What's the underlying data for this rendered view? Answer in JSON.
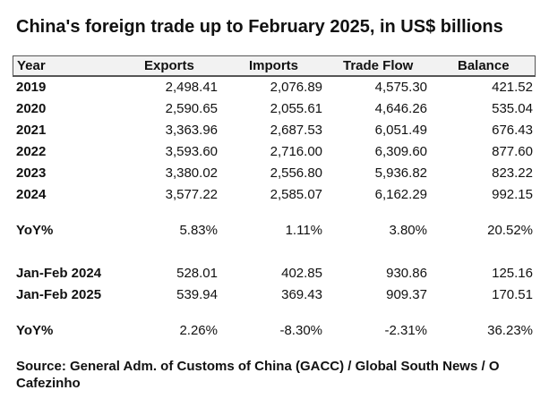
{
  "title": "China's foreign trade up to February 2025, in US$ billions",
  "columns": {
    "year": "Year",
    "exports": "Exports",
    "imports": "Imports",
    "trade_flow": "Trade Flow",
    "balance": "Balance"
  },
  "annual_rows": [
    {
      "label": "2019",
      "exports": "2,498.41",
      "imports": "2,076.89",
      "trade_flow": "4,575.30",
      "balance": "421.52"
    },
    {
      "label": "2020",
      "exports": "2,590.65",
      "imports": "2,055.61",
      "trade_flow": "4,646.26",
      "balance": "535.04"
    },
    {
      "label": "2021",
      "exports": "3,363.96",
      "imports": "2,687.53",
      "trade_flow": "6,051.49",
      "balance": "676.43"
    },
    {
      "label": "2022",
      "exports": "3,593.60",
      "imports": "2,716.00",
      "trade_flow": "6,309.60",
      "balance": "877.60"
    },
    {
      "label": "2023",
      "exports": "3,380.02",
      "imports": "2,556.80",
      "trade_flow": "5,936.82",
      "balance": "823.22"
    },
    {
      "label": "2024",
      "exports": "3,577.22",
      "imports": "2,585.07",
      "trade_flow": "6,162.29",
      "balance": "992.15"
    }
  ],
  "annual_yoy": {
    "label": "YoY%",
    "exports": "5.83%",
    "imports": "1.11%",
    "trade_flow": "3.80%",
    "balance": "20.52%"
  },
  "period_rows": [
    {
      "label": "Jan-Feb 2024",
      "exports": "528.01",
      "imports": "402.85",
      "trade_flow": "930.86",
      "balance": "125.16"
    },
    {
      "label": "Jan-Feb 2025",
      "exports": "539.94",
      "imports": "369.43",
      "trade_flow": "909.37",
      "balance": "170.51"
    }
  ],
  "period_yoy": {
    "label": "YoY%",
    "exports": "2.26%",
    "imports": "-8.30%",
    "trade_flow": "-2.31%",
    "balance": "36.23%"
  },
  "source": "Source: General Adm. of Customs of China (GACC) / Global South News / O Cafezinho"
}
